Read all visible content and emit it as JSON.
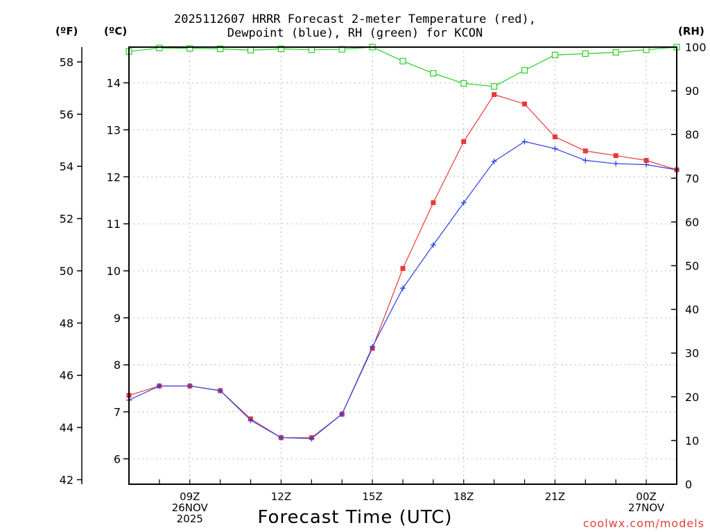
{
  "chart_data": {
    "type": "line",
    "title_lines": [
      "2025112607 HRRR Forecast 2-meter Temperature (red),",
      "Dewpoint (blue), RH (green) for KCON"
    ],
    "xlabel": "Forecast Time (UTC)",
    "credit": "coolwx.com/models",
    "unit_labels": {
      "fahrenheit": "(ºF)",
      "celsius": "(ºC)",
      "rh": "(RH)"
    },
    "x_hours": [
      7,
      8,
      9,
      10,
      11,
      12,
      13,
      14,
      15,
      16,
      17,
      18,
      19,
      20,
      21,
      22,
      23,
      24,
      25
    ],
    "xlim": [
      7,
      25
    ],
    "x_ticks": [
      {
        "hour": 9,
        "lines": [
          "09Z",
          "26NOV",
          "2025"
        ]
      },
      {
        "hour": 12,
        "lines": [
          "12Z"
        ]
      },
      {
        "hour": 15,
        "lines": [
          "15Z"
        ]
      },
      {
        "hour": 18,
        "lines": [
          "18Z"
        ]
      },
      {
        "hour": 21,
        "lines": [
          "21Z"
        ]
      },
      {
        "hour": 24,
        "lines": [
          "00Z",
          "27NOV"
        ]
      }
    ],
    "celsius_axis": {
      "ylim": [
        5.46,
        14.76
      ],
      "ticks": [
        6,
        7,
        8,
        9,
        10,
        11,
        12,
        13,
        14
      ]
    },
    "fahrenheit_axis": {
      "ticks": [
        42,
        44,
        46,
        48,
        50,
        52,
        54,
        56,
        58
      ]
    },
    "rh_axis": {
      "ylim": [
        0,
        100
      ],
      "ticks": [
        0,
        10,
        20,
        30,
        40,
        50,
        60,
        70,
        80,
        90,
        100
      ]
    },
    "series": [
      {
        "name": "Temperature",
        "axis": "celsius",
        "color": "#e83838",
        "marker": "filled-square",
        "values": [
          7.35,
          7.55,
          7.55,
          7.45,
          6.85,
          6.45,
          6.45,
          6.95,
          8.35,
          10.05,
          11.45,
          12.75,
          13.75,
          13.55,
          12.85,
          12.55,
          12.45,
          12.35,
          12.15
        ]
      },
      {
        "name": "Dewpoint",
        "axis": "celsius",
        "color": "#2a3ee8",
        "marker": "plus",
        "values": [
          7.25,
          7.55,
          7.55,
          7.45,
          6.82,
          6.45,
          6.43,
          6.95,
          8.38,
          9.63,
          10.55,
          11.45,
          12.33,
          12.75,
          12.6,
          12.35,
          12.28,
          12.26,
          12.15
        ]
      },
      {
        "name": "RH",
        "axis": "rh",
        "color": "#22d022",
        "marker": "open-square",
        "values": [
          99,
          99.8,
          99.7,
          99.6,
          99.3,
          99.6,
          99.4,
          99.5,
          100,
          96.8,
          94,
          91.7,
          91,
          94.7,
          98.2,
          98.5,
          98.8,
          99.4,
          100
        ]
      }
    ]
  }
}
